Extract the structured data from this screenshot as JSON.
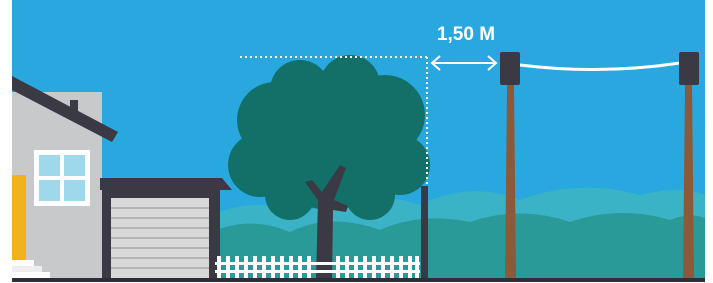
{
  "annotation": {
    "label": "1,50 M"
  }
}
